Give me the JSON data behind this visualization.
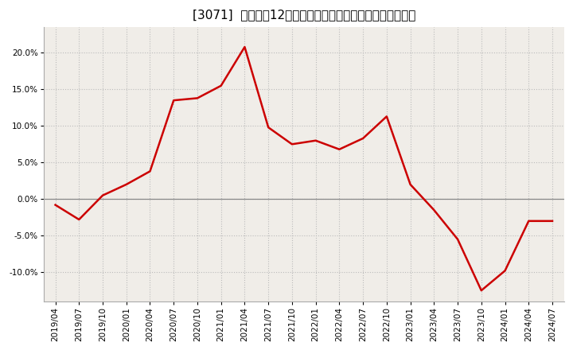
{
  "title": "[3071]  売上高の12か月移動合計の対前年同期増減率の推移",
  "line_color": "#cc0000",
  "background_color": "#ffffff",
  "plot_bg_color": "#f0ede8",
  "grid_color": "#bbbbbb",
  "zero_line_color": "#888888",
  "spine_color": "#aaaaaa",
  "xlabels": [
    "2019/04",
    "2019/07",
    "2019/10",
    "2020/01",
    "2020/04",
    "2020/07",
    "2020/10",
    "2021/01",
    "2021/04",
    "2021/07",
    "2021/10",
    "2022/01",
    "2022/04",
    "2022/07",
    "2022/10",
    "2023/01",
    "2023/04",
    "2023/07",
    "2023/10",
    "2024/01",
    "2024/04",
    "2024/07"
  ],
  "values": [
    -0.008,
    -0.028,
    0.005,
    0.02,
    0.038,
    0.135,
    0.138,
    0.155,
    0.208,
    0.098,
    0.075,
    0.08,
    0.068,
    0.083,
    0.113,
    0.02,
    -0.015,
    -0.055,
    -0.125,
    -0.098,
    -0.03,
    -0.03
  ],
  "ylim": [
    -0.14,
    0.235
  ],
  "yticks": [
    -0.1,
    -0.05,
    0.0,
    0.05,
    0.1,
    0.15,
    0.2
  ],
  "title_fontsize": 11,
  "tick_fontsize": 7.5,
  "line_width": 1.8
}
